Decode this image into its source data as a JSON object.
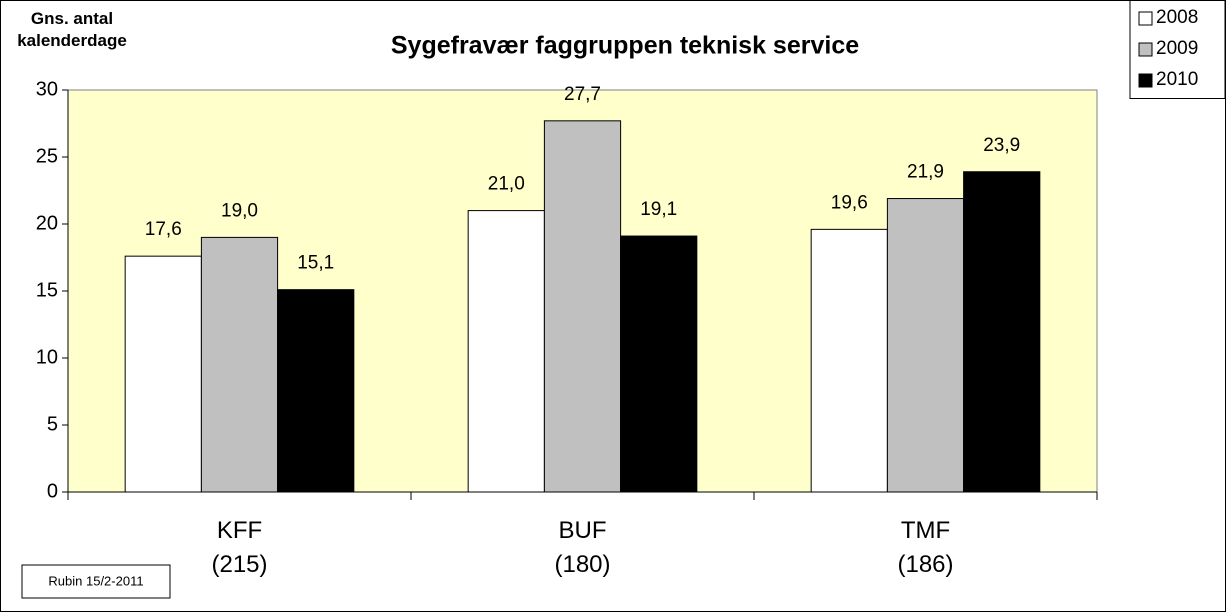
{
  "chart_data": {
    "type": "bar",
    "title": "Sygefravær faggruppen teknisk service",
    "y_label": "Gns. antal\nkalenderdage",
    "categories": [
      "KFF\n(215)",
      "BUF\n(180)",
      "TMF\n(186)"
    ],
    "series": [
      {
        "name": "2008",
        "color": "#ffffff",
        "values": [
          17.6,
          21.0,
          19.6
        ],
        "value_labels": [
          "17,6",
          "21,0",
          "19,6"
        ]
      },
      {
        "name": "2009",
        "color": "#c0c0c0",
        "values": [
          19.0,
          27.7,
          21.9
        ],
        "value_labels": [
          "19,0",
          "27,7",
          "21,9"
        ]
      },
      {
        "name": "2010",
        "color": "#000000",
        "values": [
          15.1,
          19.1,
          23.9
        ],
        "value_labels": [
          "15,1",
          "19,1",
          "23,9"
        ]
      }
    ],
    "ylim": [
      0,
      30
    ],
    "yticks": [
      0,
      5,
      10,
      15,
      20,
      25,
      30
    ],
    "grid": false,
    "legend": "top-right",
    "plot_background": "#ffffcc",
    "annotation": "Rubin 15/2-2011"
  }
}
